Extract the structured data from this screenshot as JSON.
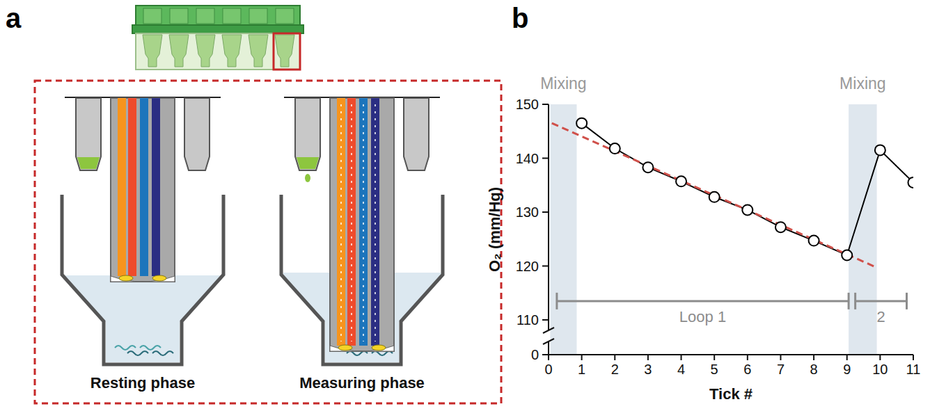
{
  "panel_labels": [
    "a",
    "b"
  ],
  "diagram": {
    "labels": [
      "Resting phase",
      "Measuring phase"
    ]
  },
  "chart_data": {
    "type": "line",
    "xlabel": "Tick #",
    "ylabel": "O₂ (mm/Hg)",
    "xlim": [
      0,
      11
    ],
    "xticks": [
      0,
      1,
      2,
      3,
      4,
      5,
      6,
      7,
      8,
      9,
      10,
      11
    ],
    "ylim": [
      0,
      150
    ],
    "yticks": [
      0,
      110,
      120,
      130,
      140,
      150
    ],
    "series": [
      {
        "type": "line",
        "color": "#000000",
        "marker": "circle",
        "line_style": "solid",
        "x": [
          1,
          2,
          3,
          4,
          5,
          6,
          7,
          8,
          9,
          10,
          11
        ],
        "values": [
          146.5,
          141.8,
          138.3,
          135.7,
          132.8,
          130.4,
          127.2,
          124.7,
          122.0,
          141.5,
          135.5
        ]
      },
      {
        "type": "line",
        "color": "#d0504a",
        "line_style": "dashed",
        "x": [
          0.1,
          9.9
        ],
        "values": [
          146.5,
          119.7
        ]
      }
    ],
    "shaded": [
      {
        "label": "Mixing",
        "x": [
          0.05,
          0.85
        ]
      },
      {
        "label": "Mixing",
        "x": [
          9.05,
          9.9
        ]
      }
    ],
    "annotations": [
      {
        "label": "Loop 1",
        "x": [
          0.25,
          9.05
        ],
        "y": 113.5
      },
      {
        "label": "2",
        "x": [
          9.25,
          10.8
        ],
        "y": 113.5
      }
    ]
  }
}
